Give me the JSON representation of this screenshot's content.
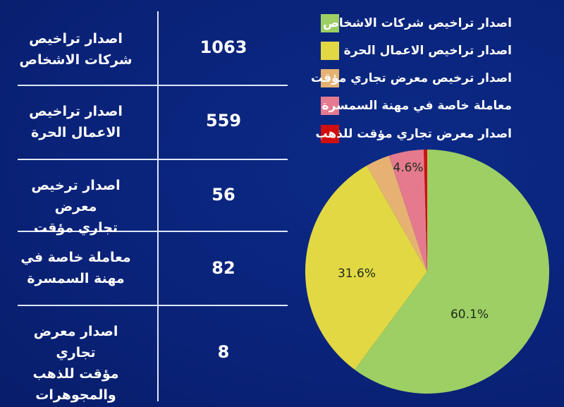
{
  "table": {
    "rows": [
      {
        "label_lines": [
          "اصدار تراخيص",
          "شركات الاشخاص"
        ],
        "value": "1063"
      },
      {
        "label_lines": [
          "اصدار تراخيص",
          "الاعمال الحرة"
        ],
        "value": "559"
      },
      {
        "label_lines": [
          "اصدار ترخيص معرض",
          "تجاري مؤقت"
        ],
        "value": "56"
      },
      {
        "label_lines": [
          "معاملة خاصة في",
          "مهنة السمسرة"
        ],
        "value": "82"
      },
      {
        "label_lines": [
          "اصدار معرض تجاري",
          "مؤقت للذهب",
          "والمجوهرات"
        ],
        "value": "8"
      }
    ]
  },
  "legend": {
    "items": [
      {
        "label": "اصدار تراخيص شركات الاشخاص",
        "color": "#9dcf64"
      },
      {
        "label": "اصدار تراخيص الاعمال الحرة",
        "color": "#e2d843"
      },
      {
        "label": "اصدار ترخيص معرض تجاري مؤقت",
        "color": "#e6b272"
      },
      {
        "label": "معاملة خاصة في مهنة السمسرة",
        "color": "#e57a8e"
      },
      {
        "label": "اصدار معرض تجاري مؤقت للذهب",
        "color": "#d20f10"
      }
    ]
  },
  "colors": {
    "background": "#0a237a",
    "grid_lines": "#dfe8f7",
    "text": "#ffffff"
  },
  "chart_data": {
    "type": "pie",
    "title": "",
    "categories": [
      "اصدار تراخيص شركات الاشخاص",
      "اصدار تراخيص الاعمال الحرة",
      "اصدار ترخيص معرض تجاري مؤقت",
      "معاملة خاصة في مهنة السمسرة",
      "اصدار معرض تجاري مؤقت للذهب"
    ],
    "values": [
      1063,
      559,
      56,
      82,
      8
    ],
    "percent_labels": [
      "60.1%",
      "31.6%",
      "",
      "4.6%",
      ""
    ],
    "colors": [
      "#9dcf64",
      "#e2d843",
      "#e6b272",
      "#e57a8e",
      "#d20f10"
    ],
    "start_angle": "12 o'clock",
    "direction": "clockwise",
    "legend_position": "top-right"
  }
}
